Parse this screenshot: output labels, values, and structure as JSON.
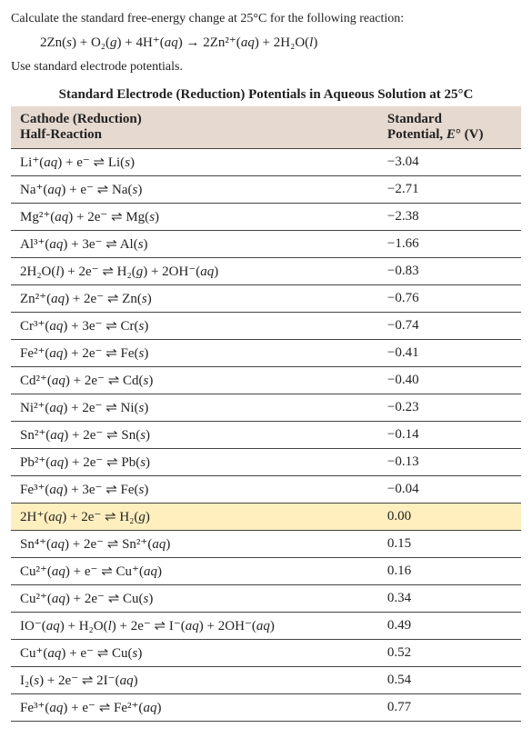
{
  "question": {
    "prompt": "Calculate the standard free-energy change at 25°C for the following reaction:",
    "equation": "2Zn(s) + O₂(g) + 4H⁺(aq) → 2Zn²⁺(aq) + 2H₂O(l)",
    "instruction": "Use standard electrode potentials."
  },
  "table": {
    "title": "Standard Electrode (Reduction) Potentials in Aqueous Solution at 25°C",
    "header_left_line1": "Cathode (Reduction)",
    "header_left_line2": "Half-Reaction",
    "header_right_line1": "Standard",
    "header_right_line2": "Potential, E° (V)",
    "rows": [
      {
        "rxn": "Li⁺(aq) + e⁻ ⇌ Li(s)",
        "E": "−3.04",
        "highlight": false
      },
      {
        "rxn": "Na⁺(aq) + e⁻ ⇌ Na(s)",
        "E": "−2.71",
        "highlight": false
      },
      {
        "rxn": "Mg²⁺(aq) + 2e⁻ ⇌ Mg(s)",
        "E": "−2.38",
        "highlight": false
      },
      {
        "rxn": "Al³⁺(aq) + 3e⁻ ⇌ Al(s)",
        "E": "−1.66",
        "highlight": false
      },
      {
        "rxn": "2H₂O(l) + 2e⁻ ⇌ H₂(g) + 2OH⁻(aq)",
        "E": "−0.83",
        "highlight": false
      },
      {
        "rxn": "Zn²⁺(aq) + 2e⁻ ⇌ Zn(s)",
        "E": "−0.76",
        "highlight": false
      },
      {
        "rxn": "Cr³⁺(aq) + 3e⁻ ⇌ Cr(s)",
        "E": "−0.74",
        "highlight": false
      },
      {
        "rxn": "Fe²⁺(aq) + 2e⁻ ⇌ Fe(s)",
        "E": "−0.41",
        "highlight": false
      },
      {
        "rxn": "Cd²⁺(aq) + 2e⁻ ⇌ Cd(s)",
        "E": "−0.40",
        "highlight": false
      },
      {
        "rxn": "Ni²⁺(aq) + 2e⁻ ⇌ Ni(s)",
        "E": "−0.23",
        "highlight": false
      },
      {
        "rxn": "Sn²⁺(aq) + 2e⁻ ⇌ Sn(s)",
        "E": "−0.14",
        "highlight": false
      },
      {
        "rxn": "Pb²⁺(aq) + 2e⁻ ⇌ Pb(s)",
        "E": "−0.13",
        "highlight": false
      },
      {
        "rxn": "Fe³⁺(aq) + 3e⁻ ⇌ Fe(s)",
        "E": "−0.04",
        "highlight": false
      },
      {
        "rxn": "2H⁺(aq) + 2e⁻ ⇌ H₂(g)",
        "E": "0.00",
        "highlight": true
      },
      {
        "rxn": "Sn⁴⁺(aq) + 2e⁻ ⇌ Sn²⁺(aq)",
        "E": "0.15",
        "highlight": false
      },
      {
        "rxn": "Cu²⁺(aq) + e⁻ ⇌ Cu⁺(aq)",
        "E": "0.16",
        "highlight": false
      },
      {
        "rxn": "Cu²⁺(aq) + 2e⁻ ⇌ Cu(s)",
        "E": "0.34",
        "highlight": false
      },
      {
        "rxn": "IO⁻(aq) + H₂O(l) + 2e⁻ ⇌ I⁻(aq) + 2OH⁻(aq)",
        "E": "0.49",
        "highlight": false
      },
      {
        "rxn": "Cu⁺(aq) + e⁻ ⇌ Cu(s)",
        "E": "0.52",
        "highlight": false
      },
      {
        "rxn": "I₂(s) + 2e⁻ ⇌ 2I⁻(aq)",
        "E": "0.54",
        "highlight": false
      },
      {
        "rxn": "Fe³⁺(aq) + e⁻ ⇌ Fe²⁺(aq)",
        "E": "0.77",
        "highlight": false
      }
    ]
  },
  "colors": {
    "header_bg": "#e6d9d0",
    "highlight_bg": "#ffefbf",
    "border": "#444444",
    "text": "#222222"
  },
  "fonts": {
    "body": "Georgia, Times New Roman, serif",
    "body_size_pt": 11,
    "title_bold": true
  }
}
